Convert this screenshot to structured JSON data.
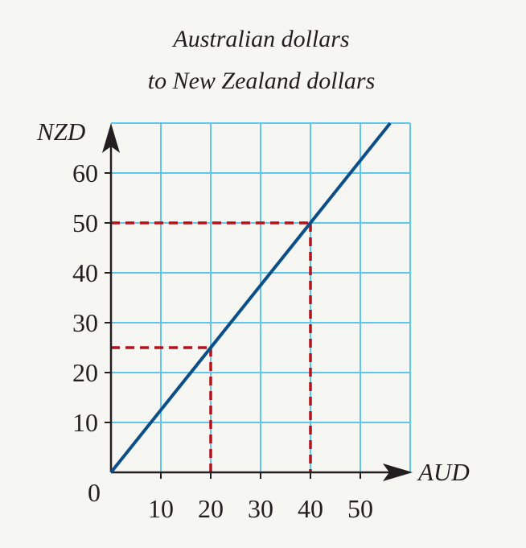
{
  "chart_data": {
    "type": "line",
    "title_lines": [
      "Australian dollars",
      "to New Zealand dollars"
    ],
    "xlabel": "AUD",
    "ylabel": "NZD",
    "origin_label": "0",
    "x_ticks": [
      10,
      20,
      30,
      40,
      50
    ],
    "y_ticks": [
      10,
      20,
      30,
      40,
      50,
      60
    ],
    "xlim": [
      0,
      60
    ],
    "ylim": [
      0,
      70
    ],
    "grid": true,
    "series": [
      {
        "x": [
          0,
          56
        ],
        "y": [
          0,
          70
        ]
      }
    ],
    "reference_points": [
      {
        "x": 20,
        "y": 25
      },
      {
        "x": 40,
        "y": 50
      }
    ],
    "colors": {
      "line": "#0b4f8a",
      "grid": "#5fc6ee",
      "reference": "#b5121b",
      "axis": "#231f20",
      "background": "#f6f6f2"
    }
  }
}
